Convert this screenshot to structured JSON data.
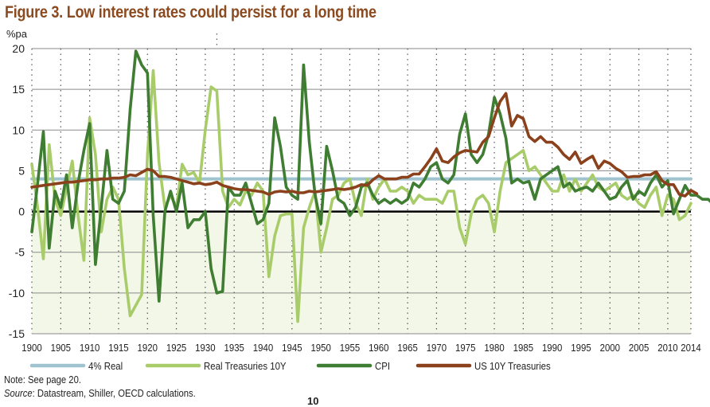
{
  "figure": {
    "title": "Figure 3. Low interest rates could persist for a long time",
    "note": "Note: See page 20.",
    "source_label": "Source",
    "source_text": ": Datastream, Shiller, OECD calculations.",
    "page_number": "10"
  },
  "chart_data": {
    "type": "line",
    "title": "Figure 3. Low interest rates could persist for a long time",
    "ylabel": "%pa",
    "xlabel": "",
    "ylim": [
      -15,
      20
    ],
    "xlim": [
      1900,
      2014
    ],
    "yticks": [
      20,
      15,
      10,
      5,
      0,
      -5,
      -10,
      -15
    ],
    "xticks": [
      1900,
      1905,
      1910,
      1915,
      1920,
      1925,
      1930,
      1935,
      1940,
      1945,
      1950,
      1955,
      1960,
      1965,
      1970,
      1975,
      1980,
      1985,
      1990,
      1995,
      2000,
      2005,
      2010,
      2014
    ],
    "grid": true,
    "legend_position": "bottom",
    "negative_region_shaded": true,
    "colors": {
      "four_pct_real": "#9fc4cf",
      "real_treasuries": "#a9cc6a",
      "cpi": "#3f7d32",
      "us10y": "#8b421c",
      "shade": "#f3f7e8",
      "title": "#8b4a1f"
    },
    "x_start": 1900,
    "series": [
      {
        "name": "4% Real",
        "key": "four_pct_real",
        "constant": 4
      },
      {
        "name": "Real Treasuries 10Y",
        "key": "real_treasuries",
        "values": [
          5.8,
          0.5,
          -5.8,
          8.2,
          1.5,
          -0.5,
          2.8,
          6.2,
          -0.5,
          -6.0,
          11.5,
          7.0,
          -2.5,
          1.5,
          3.0,
          1.5,
          -7.0,
          -12.8,
          -11.5,
          -10.2,
          7.0,
          17.3,
          6.0,
          0.5,
          2.0,
          0.5,
          5.8,
          4.5,
          4.8,
          3.5,
          10.0,
          15.3,
          14.8,
          2.5,
          0.5,
          1.5,
          0.8,
          2.5,
          2.0,
          3.5,
          2.5,
          -8.0,
          -3.0,
          -0.5,
          -0.3,
          -0.3,
          -13.5,
          -2.0,
          0.5,
          2.5,
          -5.0,
          -2.0,
          1.5,
          2.0,
          3.5,
          4.0,
          1.0,
          -0.5,
          4.0,
          1.5,
          3.0,
          4.0,
          2.5,
          2.5,
          3.0,
          2.5,
          1.0,
          2.0,
          1.5,
          1.5,
          1.5,
          1.0,
          2.5,
          2.5,
          -2.0,
          -4.0,
          -0.3,
          1.5,
          2.0,
          1.0,
          -2.5,
          2.5,
          6.0,
          6.5,
          7.0,
          7.5,
          5.0,
          5.5,
          4.5,
          3.5,
          2.5,
          2.5,
          4.5,
          2.5,
          4.0,
          2.5,
          3.5,
          4.5,
          3.0,
          2.5,
          3.0,
          3.5,
          2.0,
          1.5,
          2.0,
          1.0,
          0.5,
          2.0,
          3.0,
          -0.5,
          2.0,
          1.5,
          -1.0,
          -0.5,
          1.0
        ]
      },
      {
        "name": "CPI",
        "key": "cpi",
        "values": [
          -2.5,
          3.5,
          9.8,
          -4.5,
          2.5,
          0.5,
          4.5,
          -2.0,
          3.5,
          7.5,
          10.8,
          -6.5,
          0.5,
          7.5,
          1.5,
          1.0,
          2.5,
          12.5,
          19.7,
          18.0,
          17.0,
          -0.5,
          -11.0,
          0.0,
          2.5,
          0.0,
          3.5,
          -2.0,
          -1.0,
          -1.0,
          0.0,
          -7.0,
          -10.0,
          -9.8,
          3.0,
          2.0,
          2.0,
          3.5,
          1.0,
          -1.5,
          -1.0,
          1.0,
          11.5,
          8.0,
          3.0,
          2.0,
          1.5,
          18.0,
          8.5,
          2.0,
          -1.5,
          8.0,
          5.0,
          1.5,
          1.0,
          -0.5,
          0.5,
          3.0,
          3.5,
          2.0,
          1.0,
          1.5,
          1.0,
          1.5,
          1.0,
          1.5,
          3.5,
          3.0,
          4.0,
          5.5,
          6.0,
          4.0,
          3.5,
          4.5,
          9.5,
          12.0,
          7.0,
          6.0,
          7.0,
          9.5,
          14.0,
          12.0,
          9.0,
          3.5,
          4.0,
          3.5,
          3.7,
          1.5,
          4.0,
          4.5,
          5.0,
          5.5,
          3.0,
          3.5,
          2.5,
          2.8,
          3.0,
          2.5,
          3.5,
          2.5,
          1.5,
          1.8,
          3.0,
          3.8,
          1.5,
          2.5,
          2.0,
          3.5,
          4.5,
          3.0,
          3.8,
          -0.3,
          1.5,
          3.2,
          2.0,
          2.0,
          1.5,
          1.5,
          0.8
        ]
      },
      {
        "name": "US 10Y Treasuries",
        "key": "us10y",
        "values": [
          3.0,
          3.1,
          3.2,
          3.3,
          3.4,
          3.5,
          3.6,
          3.6,
          3.7,
          3.8,
          3.9,
          3.9,
          4.0,
          4.0,
          4.1,
          4.1,
          4.2,
          4.5,
          4.4,
          4.8,
          5.2,
          5.0,
          4.3,
          4.3,
          4.2,
          4.0,
          3.8,
          3.6,
          3.4,
          3.5,
          3.3,
          3.4,
          3.6,
          3.2,
          3.0,
          2.8,
          2.7,
          2.7,
          2.6,
          2.5,
          2.4,
          2.1,
          2.4,
          2.5,
          2.4,
          2.5,
          2.3,
          2.3,
          2.5,
          2.4,
          2.5,
          2.6,
          2.7,
          2.8,
          2.7,
          2.8,
          3.0,
          3.3,
          3.2,
          3.9,
          4.4,
          4.0,
          4.0,
          4.0,
          4.2,
          4.2,
          4.6,
          4.6,
          5.5,
          6.5,
          7.7,
          6.2,
          6.0,
          6.7,
          7.2,
          7.5,
          7.4,
          7.3,
          8.5,
          9.2,
          11.5,
          13.5,
          14.5,
          10.5,
          11.8,
          11.4,
          9.2,
          8.6,
          9.2,
          8.5,
          8.5,
          7.9,
          7.0,
          6.4,
          7.3,
          5.9,
          6.4,
          6.8,
          5.3,
          6.2,
          5.9,
          5.3,
          4.9,
          4.2,
          4.3,
          4.3,
          4.5,
          4.5,
          4.9,
          3.8,
          3.3,
          3.3,
          2.1,
          1.9,
          2.6,
          2.2
        ]
      }
    ]
  },
  "legend": {
    "items": [
      {
        "label": "4% Real"
      },
      {
        "label": "Real Treasuries 10Y"
      },
      {
        "label": "CPI"
      },
      {
        "label": "US 10Y Treasuries"
      }
    ]
  }
}
